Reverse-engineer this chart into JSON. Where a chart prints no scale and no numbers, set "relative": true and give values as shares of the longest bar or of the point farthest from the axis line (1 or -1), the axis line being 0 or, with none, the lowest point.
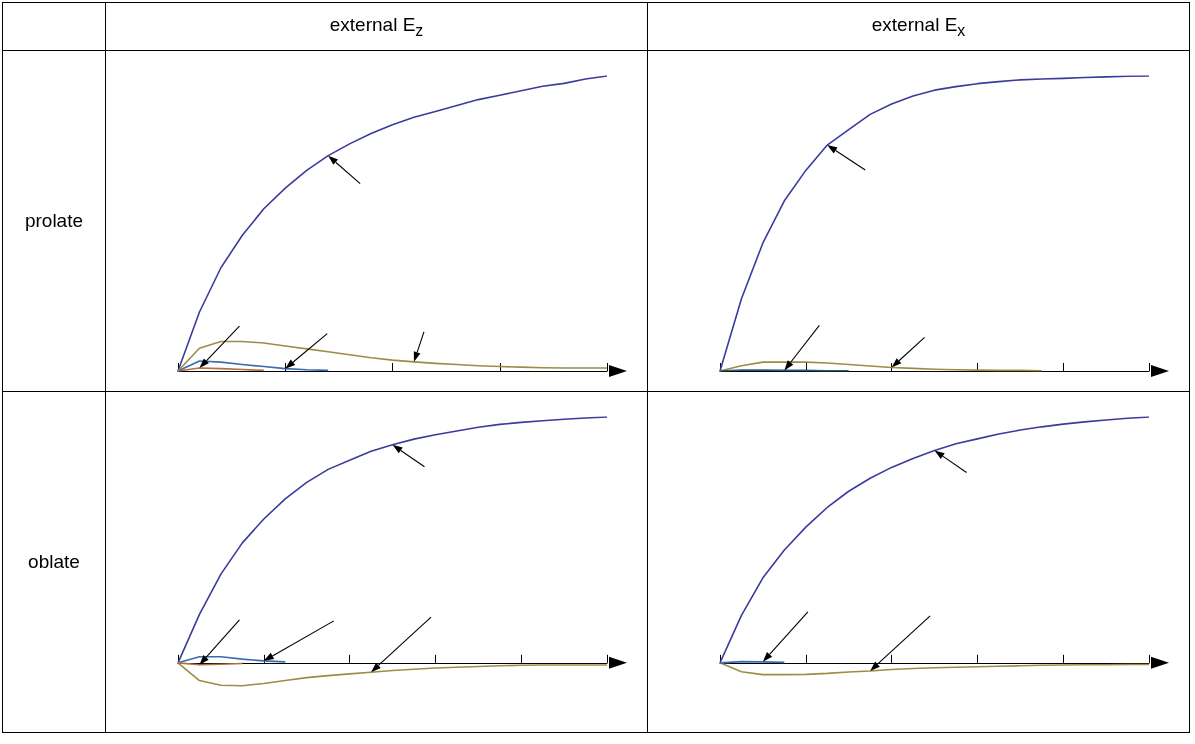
{
  "chart_data": [
    {
      "type": "line",
      "title": "external E$_{z}$",
      "ylabel": "prolate",
      "relative": true,
      "grid": false,
      "categories": [
        null,
        null,
        null,
        null,
        null,
        null,
        null,
        null,
        null,
        null,
        null,
        null,
        null,
        null,
        null,
        null,
        null,
        null,
        null,
        null,
        null
      ],
      "series": [
        {
          "color": "#3b3b9e",
          "values": [
            0,
            0.2,
            0.35,
            0.46,
            0.55,
            0.62,
            0.68,
            0.73,
            0.77,
            0.805,
            0.835,
            0.86,
            0.88,
            0.9,
            0.92,
            0.935,
            0.95,
            0.965,
            0.975,
            0.99,
            1
          ]
        },
        {
          "color": "#9c8c45",
          "values": [
            0,
            0.077,
            0.1,
            0.1,
            0.095,
            0.085,
            0.075,
            0.065,
            0.055,
            0.045,
            0.037,
            0.031,
            0.026,
            0.022,
            0.018,
            0.015,
            0.013,
            0.011,
            0.01,
            0.01,
            0.01
          ]
        },
        {
          "color": "#3b6bb0",
          "values": [
            0,
            0.034,
            0.03,
            0.022,
            0.015,
            0.008,
            0.004,
            0.002,
            null,
            null,
            null,
            null,
            null,
            null,
            null,
            null,
            null,
            null,
            null,
            null,
            null
          ]
        },
        {
          "color": "#b07040",
          "values": [
            0,
            0.01,
            0.008,
            0.005,
            0.002,
            null,
            null,
            null,
            null,
            null,
            null,
            null,
            null,
            null,
            null,
            null,
            null,
            null,
            null,
            null,
            null
          ]
        }
      ]
    },
    {
      "type": "line",
      "title": "external E$_{x}$",
      "relative": true,
      "grid": false,
      "categories": [
        null,
        null,
        null,
        null,
        null,
        null,
        null,
        null,
        null,
        null,
        null,
        null,
        null,
        null,
        null,
        null,
        null,
        null,
        null,
        null,
        null
      ],
      "series": [
        {
          "color": "#3b3b9e",
          "values": [
            0,
            0.245,
            0.434,
            0.577,
            0.68,
            0.766,
            0.818,
            0.87,
            0.905,
            0.932,
            0.952,
            0.964,
            0.974,
            0.981,
            0.987,
            0.99,
            0.992,
            0.995,
            0.997,
            0.999,
            1
          ]
        },
        {
          "color": "#9c8c45",
          "values": [
            0,
            0.018,
            0.03,
            0.03,
            0.03,
            0.027,
            0.022,
            0.017,
            0.012,
            0.009,
            0.006,
            0.004,
            0.003,
            0.002,
            0.002,
            0.001,
            null,
            null,
            null,
            null,
            null
          ]
        },
        {
          "color": "#2a5a7a",
          "values": [
            0,
            0.003,
            0.003,
            0.002,
            0.002,
            0.001,
            0.001,
            null,
            null,
            null,
            null,
            null,
            null,
            null,
            null,
            null,
            null,
            null,
            null,
            null,
            null
          ]
        }
      ]
    },
    {
      "type": "line",
      "ylabel": "oblate",
      "relative": true,
      "grid": false,
      "categories": [
        null,
        null,
        null,
        null,
        null,
        null,
        null,
        null,
        null,
        null,
        null,
        null,
        null,
        null,
        null,
        null,
        null,
        null,
        null,
        null,
        null
      ],
      "series": [
        {
          "color": "#3b3b9e",
          "values": [
            0,
            0.197,
            0.361,
            0.488,
            0.585,
            0.667,
            0.734,
            0.787,
            0.824,
            0.861,
            0.887,
            0.91,
            0.928,
            0.943,
            0.958,
            0.97,
            0.978,
            0.985,
            0.991,
            0.996,
            1
          ]
        },
        {
          "color": "#9c8c45",
          "values": [
            0,
            -0.072,
            -0.091,
            -0.093,
            -0.084,
            -0.072,
            -0.06,
            -0.052,
            -0.045,
            -0.038,
            -0.031,
            -0.026,
            -0.021,
            -0.018,
            -0.015,
            -0.012,
            -0.01,
            -0.009,
            -0.009,
            -0.009,
            -0.009
          ]
        },
        {
          "color": "#3b6bb0",
          "values": [
            0,
            0.025,
            0.025,
            0.015,
            0.008,
            0.004,
            null,
            null,
            null,
            null,
            null,
            null,
            null,
            null,
            null,
            null,
            null,
            null,
            null,
            null,
            null
          ]
        },
        {
          "color": "#b07040",
          "values": [
            0,
            -0.008,
            -0.006,
            -0.003,
            null,
            null,
            null,
            null,
            null,
            null,
            null,
            null,
            null,
            null,
            null,
            null,
            null,
            null,
            null,
            null,
            null
          ]
        }
      ]
    },
    {
      "type": "line",
      "relative": true,
      "grid": false,
      "categories": [
        null,
        null,
        null,
        null,
        null,
        null,
        null,
        null,
        null,
        null,
        null,
        null,
        null,
        null,
        null,
        null,
        null,
        null,
        null,
        null,
        null
      ],
      "series": [
        {
          "color": "#3b3b9e",
          "values": [
            0,
            0.193,
            0.346,
            0.459,
            0.552,
            0.632,
            0.698,
            0.751,
            0.795,
            0.831,
            0.864,
            0.891,
            0.911,
            0.931,
            0.947,
            0.96,
            0.971,
            0.98,
            0.988,
            0.995,
            1
          ]
        },
        {
          "color": "#9c8c45",
          "values": [
            0,
            -0.036,
            -0.048,
            -0.048,
            -0.047,
            -0.043,
            -0.037,
            -0.033,
            -0.027,
            -0.023,
            -0.02,
            -0.018,
            -0.016,
            -0.014,
            -0.012,
            -0.01,
            -0.009,
            -0.008,
            -0.008,
            -0.007,
            -0.007
          ]
        },
        {
          "color": "#3b6bb0",
          "values": [
            0,
            0.005,
            0.004,
            0.002,
            null,
            null,
            null,
            null,
            null,
            null,
            null,
            null,
            null,
            null,
            null,
            null,
            null,
            null,
            null,
            null,
            null
          ]
        }
      ]
    }
  ]
}
